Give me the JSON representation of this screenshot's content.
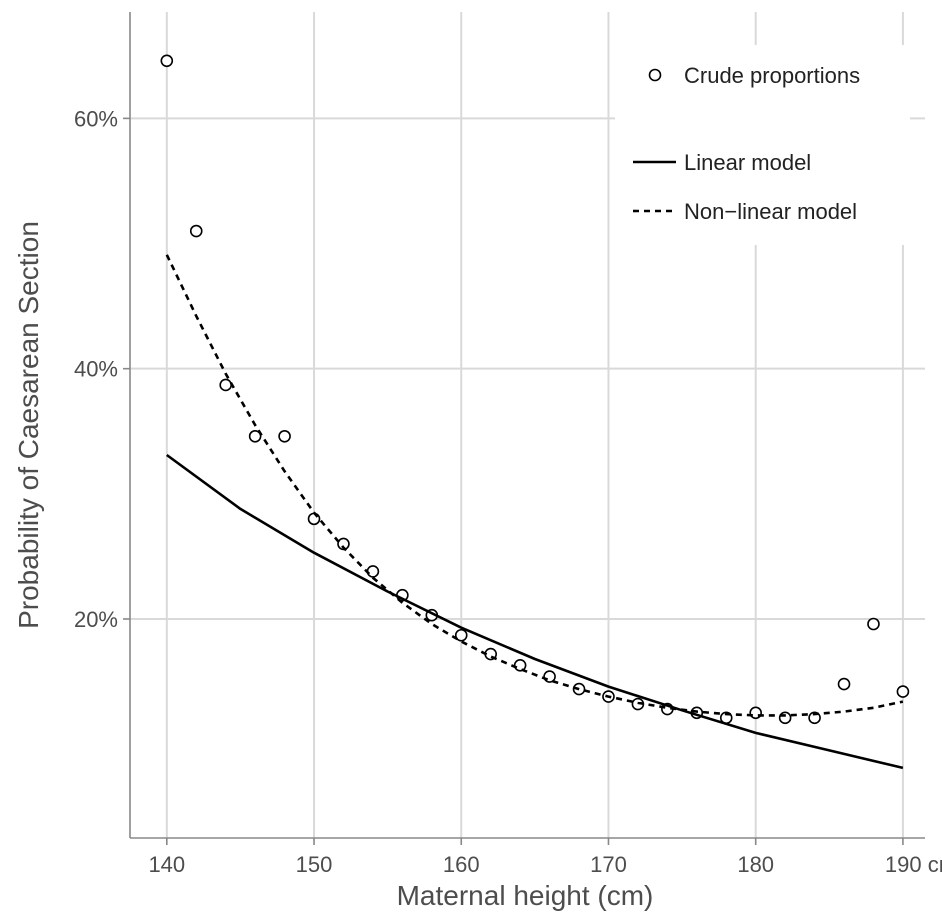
{
  "chart_data": {
    "type": "line",
    "xlabel": "Maternal height (cm)",
    "ylabel": "Probability of Caesarean Section",
    "xlim": [
      137.5,
      191.5
    ],
    "ylim": [
      0.025,
      0.685
    ],
    "x_ticks": [
      140,
      150,
      160,
      170,
      180,
      190
    ],
    "x_tick_labels": [
      "140",
      "150",
      "160",
      "170",
      "180",
      "190 cm"
    ],
    "y_ticks": [
      0.2,
      0.4,
      0.6
    ],
    "y_tick_labels": [
      "20%",
      "40%",
      "60%"
    ],
    "grid": true,
    "legend": {
      "placement": "top-right",
      "entries": [
        "Crude proportions",
        "Linear model",
        "Non−linear model"
      ]
    },
    "series": [
      {
        "name": "Crude proportions",
        "type": "scatter",
        "x": [
          140,
          142,
          144,
          146,
          148,
          150,
          152,
          154,
          156,
          158,
          160,
          162,
          164,
          166,
          168,
          170,
          172,
          174,
          176,
          178,
          180,
          182,
          184,
          186,
          188,
          190
        ],
        "y": [
          0.646,
          0.51,
          0.387,
          0.346,
          0.346,
          0.28,
          0.26,
          0.238,
          0.219,
          0.203,
          0.187,
          0.172,
          0.163,
          0.154,
          0.144,
          0.138,
          0.132,
          0.128,
          0.125,
          0.121,
          0.125,
          0.121,
          0.121,
          0.148,
          0.196,
          0.142
        ]
      },
      {
        "name": "Linear model",
        "type": "line",
        "style": "solid",
        "x": [
          140,
          145,
          150,
          155,
          160,
          165,
          170,
          175,
          180,
          185,
          190
        ],
        "y": [
          0.331,
          0.288,
          0.253,
          0.222,
          0.193,
          0.168,
          0.146,
          0.127,
          0.109,
          0.095,
          0.081
        ]
      },
      {
        "name": "Non−linear model",
        "type": "line",
        "style": "dashed",
        "x": [
          140,
          142,
          144,
          146,
          148,
          150,
          152,
          154,
          156,
          158,
          160,
          162,
          164,
          166,
          168,
          170,
          172,
          174,
          176,
          178,
          180,
          182,
          184,
          186,
          188,
          190
        ],
        "y": [
          0.491,
          0.442,
          0.396,
          0.355,
          0.318,
          0.285,
          0.257,
          0.233,
          0.213,
          0.196,
          0.182,
          0.17,
          0.16,
          0.151,
          0.144,
          0.138,
          0.133,
          0.129,
          0.126,
          0.124,
          0.123,
          0.123,
          0.124,
          0.126,
          0.129,
          0.134
        ]
      }
    ]
  }
}
